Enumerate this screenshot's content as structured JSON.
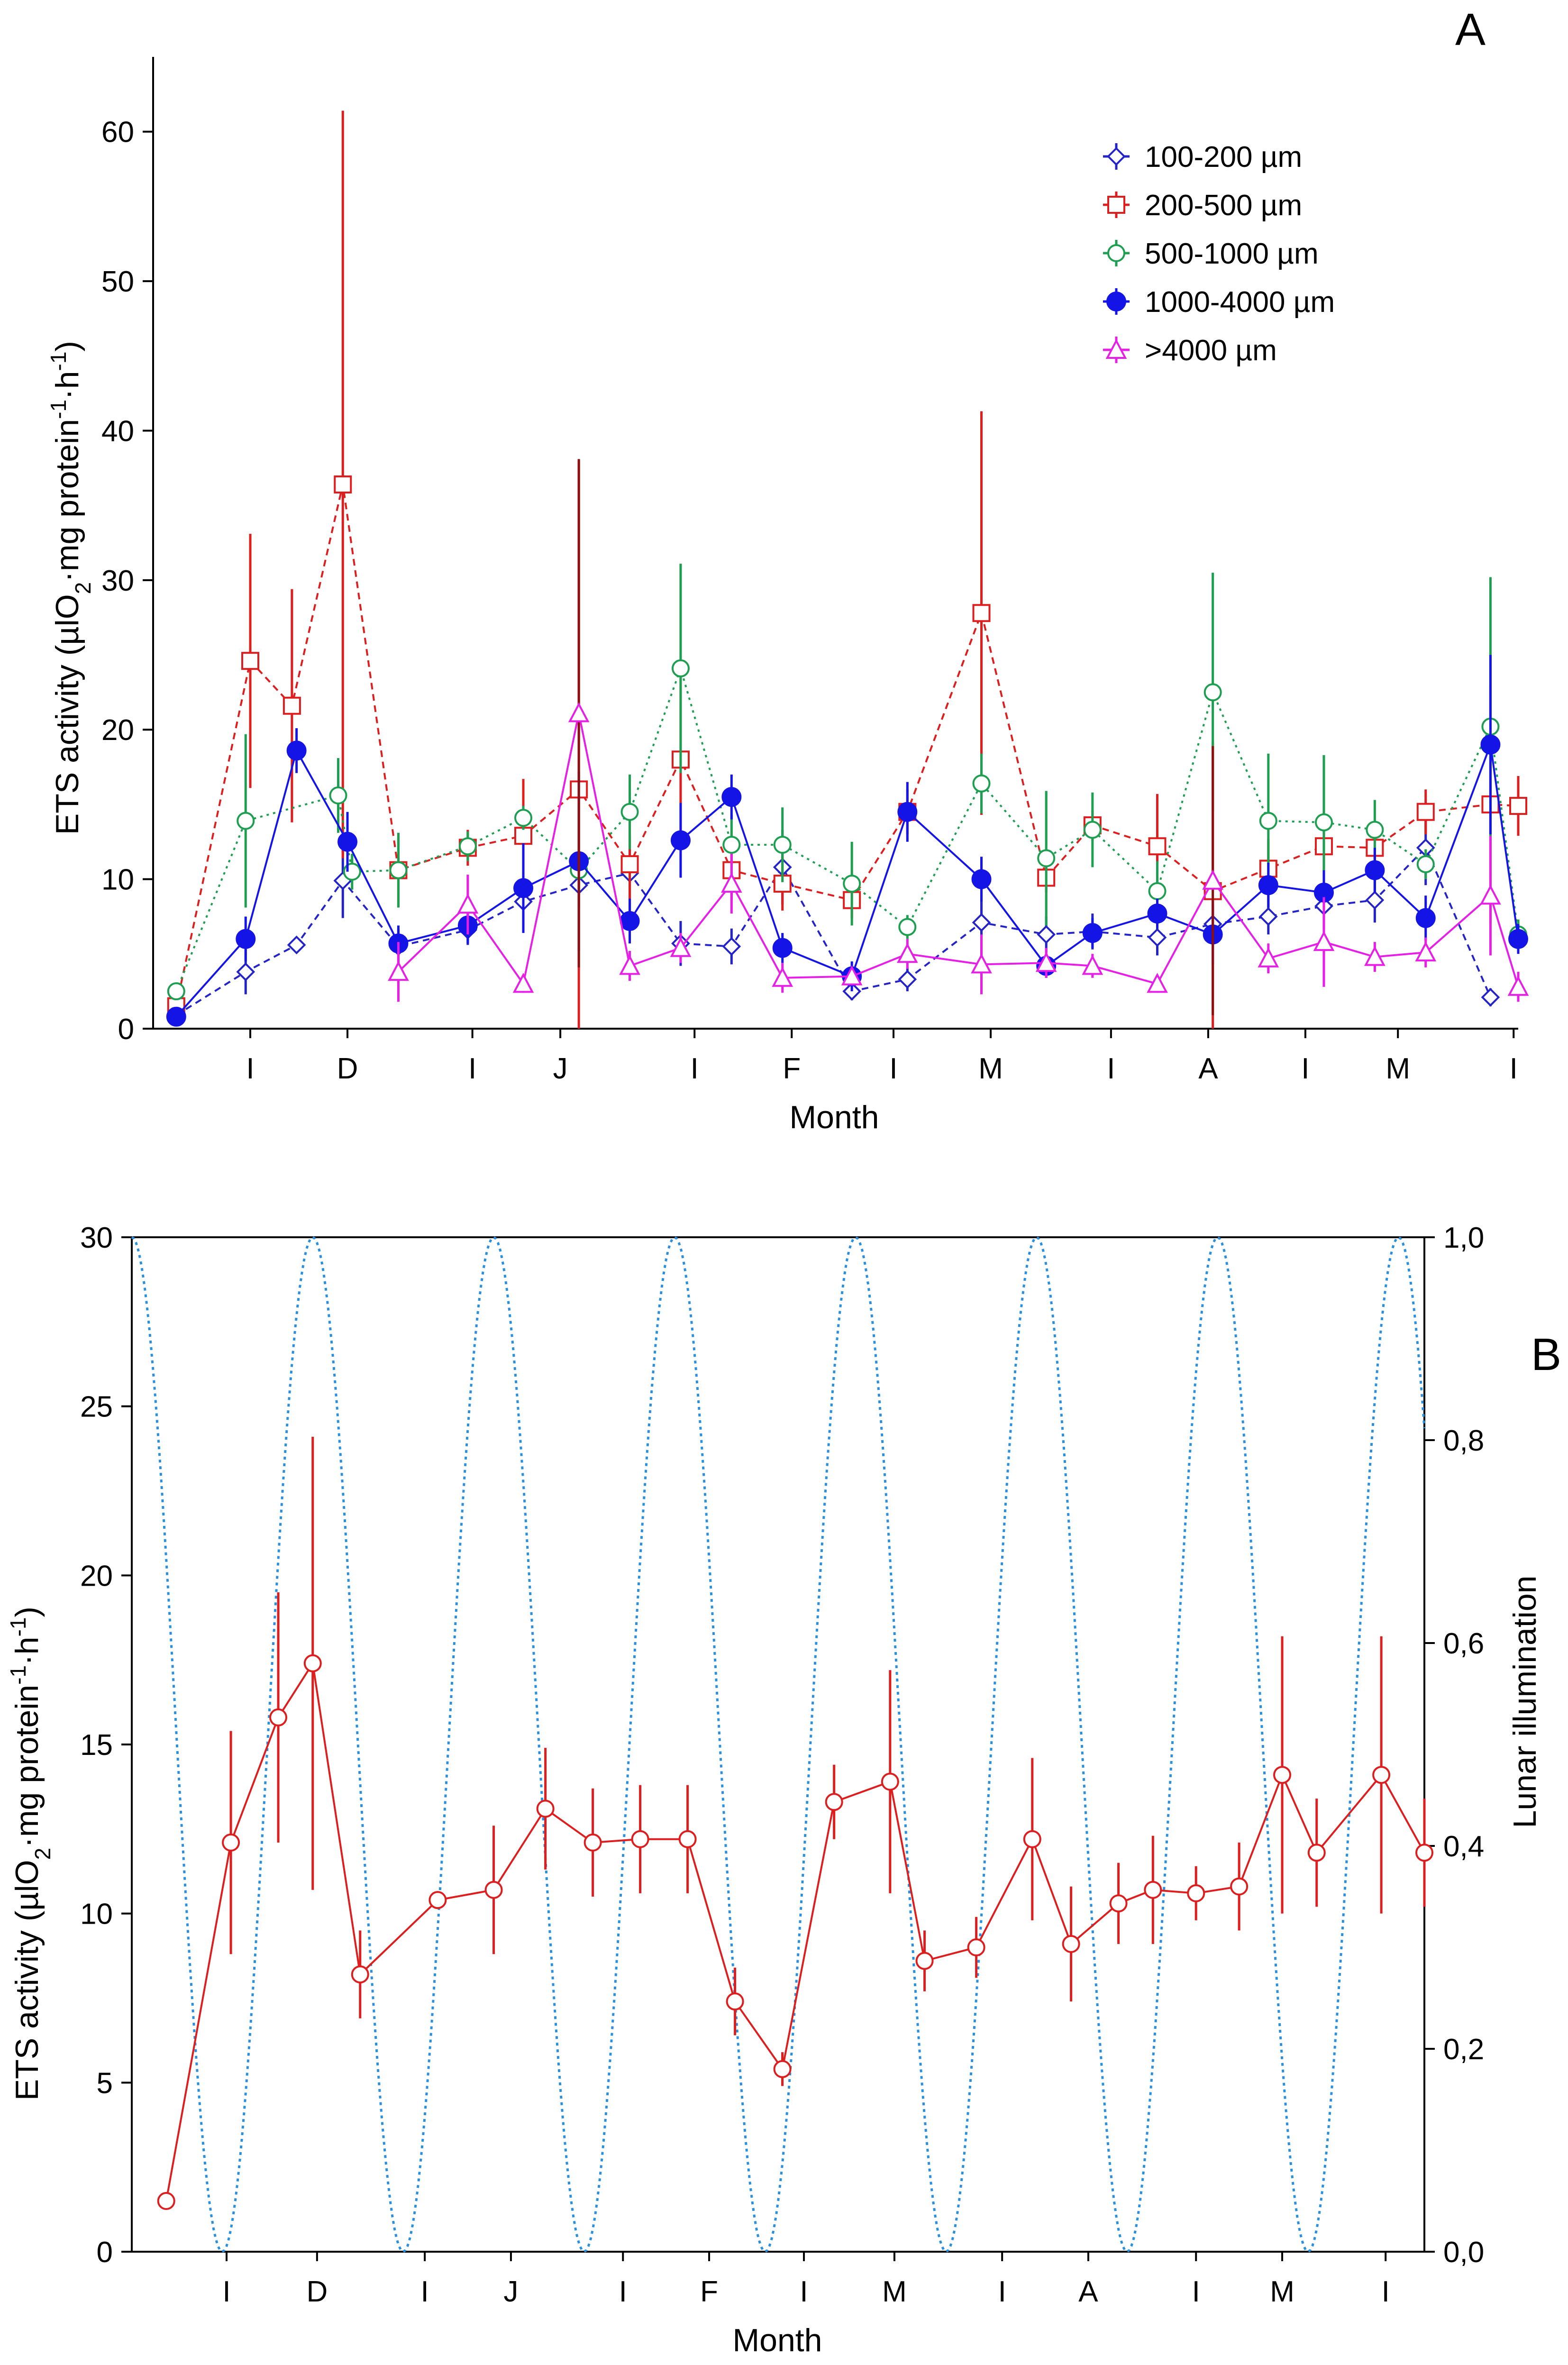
{
  "colors": {
    "blue_diamond": "#2323c8",
    "red_square": "#dc1e1e",
    "green_circle": "#1e9e50",
    "navy_dot": "#1414e6",
    "magenta_triangle": "#e61ee6",
    "dark_red_bar": "#8b1010",
    "lunar_line": "#2a8fdc",
    "panelB_red": "#dc1e1e"
  },
  "chart_data": [
    {
      "panel_label": "A",
      "type": "line",
      "xlabel": "Month",
      "ylabel_parts": [
        "ETS activity (",
        "µ",
        "lO",
        "2",
        "·mg protein",
        "-1",
        "·h",
        "-1",
        ")"
      ],
      "xlim": [
        0.5,
        30
      ],
      "ylim": [
        0,
        65
      ],
      "yticks": [
        0,
        10,
        20,
        30,
        40,
        50,
        60
      ],
      "month_ticks": [
        {
          "x": 2.6,
          "label": "I"
        },
        {
          "x": 4.7,
          "label": "D"
        },
        {
          "x": 7.4,
          "label": "I"
        },
        {
          "x": 9.3,
          "label": "J"
        },
        {
          "x": 12.2,
          "label": "I"
        },
        {
          "x": 14.3,
          "label": "F"
        },
        {
          "x": 16.5,
          "label": "I"
        },
        {
          "x": 18.6,
          "label": "M"
        },
        {
          "x": 21.2,
          "label": "I"
        },
        {
          "x": 23.3,
          "label": "A"
        },
        {
          "x": 25.4,
          "label": "I"
        },
        {
          "x": 27.4,
          "label": "M"
        },
        {
          "x": 29.9,
          "label": "I"
        }
      ],
      "series": [
        {
          "name": "100-200 µm",
          "marker": "diamond",
          "dash": "dashed",
          "color": "#2323c8",
          "x": [
            1,
            2.5,
            3.6,
            4.6,
            5.8,
            7.3,
            8.5,
            9.7,
            10.8,
            11.9,
            13.0,
            14.1,
            15.6,
            16.8,
            18.4,
            19.8,
            20.8,
            22.2,
            23.4,
            24.6,
            25.8,
            26.9,
            28.0,
            29.4
          ],
          "y": [
            0.9,
            3.8,
            5.6,
            9.9,
            5.5,
            6.6,
            8.5,
            9.6,
            10.4,
            5.7,
            5.5,
            10.8,
            2.5,
            3.3,
            7.1,
            6.3,
            6.5,
            6.1,
            7.0,
            7.5,
            8.2,
            8.6,
            12.1,
            2.1
          ],
          "err": [
            0.2,
            1.5,
            0.5,
            2.5,
            1.2,
            1.0,
            1.5,
            1.5,
            2.5,
            1.5,
            1.2,
            2.5,
            0.6,
            0.8,
            2.5,
            1.2,
            1.2,
            1.2,
            1.5,
            1.2,
            1.5,
            1.5,
            2.5,
            0.6
          ]
        },
        {
          "name": "200-500 µm",
          "marker": "square",
          "dash": "dashed",
          "color": "#dc1e1e",
          "x": [
            1,
            2.6,
            3.5,
            4.6,
            5.8,
            7.3,
            8.5,
            9.7,
            10.8,
            11.9,
            13.0,
            14.1,
            15.6,
            16.8,
            18.4,
            19.8,
            20.8,
            22.2,
            23.4,
            24.6,
            25.8,
            26.9,
            28.0,
            29.4,
            30.0
          ],
          "y": [
            1.5,
            24.6,
            21.6,
            36.4,
            10.6,
            12.1,
            12.9,
            16.0,
            11.0,
            18.0,
            10.6,
            9.7,
            8.6,
            14.5,
            27.8,
            10.1,
            13.6,
            12.2,
            9.2,
            10.7,
            12.2,
            12.1,
            14.5,
            15.0,
            14.9
          ],
          "err": [
            0.3,
            8.5,
            7.8,
            25.0,
            2.5,
            1.2,
            3.8,
            22.0,
            4.0,
            6.0,
            2.0,
            1.8,
            1.2,
            1.5,
            13.5,
            1.0,
            1.0,
            3.5,
            10.0,
            2.0,
            2.0,
            1.5,
            1.5,
            8.0,
            2.0
          ]
        },
        {
          "name": "500-1000 µm",
          "marker": "circle-open",
          "dash": "dotted",
          "color": "#1e9e50",
          "x": [
            1,
            2.5,
            4.5,
            4.8,
            5.8,
            7.3,
            8.5,
            9.7,
            10.8,
            11.9,
            13.0,
            14.1,
            15.6,
            16.8,
            18.4,
            19.8,
            20.8,
            22.2,
            23.4,
            24.6,
            25.8,
            26.9,
            28.0,
            29.4,
            30.0
          ],
          "y": [
            2.5,
            13.9,
            15.6,
            10.5,
            10.6,
            12.2,
            14.1,
            10.6,
            14.5,
            24.1,
            12.3,
            12.3,
            9.7,
            6.8,
            16.4,
            11.4,
            13.3,
            9.2,
            22.5,
            13.9,
            13.8,
            13.3,
            11.0,
            20.2,
            6.3
          ],
          "err": [
            0.5,
            5.8,
            2.5,
            1.2,
            2.5,
            1.0,
            0.8,
            1.2,
            2.5,
            7.0,
            2.0,
            2.5,
            2.8,
            0.8,
            2.0,
            4.5,
            2.5,
            2.0,
            8.0,
            4.5,
            4.5,
            2.0,
            1.0,
            10.0,
            1.0
          ]
        },
        {
          "name": "1000-4000 µm",
          "marker": "circle-filled",
          "dash": "solid",
          "color": "#1414e6",
          "x": [
            1,
            2.5,
            3.6,
            4.7,
            5.8,
            7.3,
            8.5,
            9.7,
            10.8,
            11.9,
            13.0,
            14.1,
            15.6,
            16.8,
            18.4,
            19.8,
            20.8,
            22.2,
            23.4,
            24.6,
            25.8,
            26.9,
            28.0,
            29.4,
            30.0
          ],
          "y": [
            0.8,
            6.0,
            18.6,
            12.5,
            5.7,
            6.9,
            9.4,
            11.2,
            7.2,
            12.6,
            15.5,
            5.4,
            3.5,
            14.5,
            10.0,
            4.2,
            6.4,
            7.7,
            6.3,
            9.6,
            9.1,
            10.6,
            7.4,
            19.0,
            6.0
          ],
          "err": [
            0.2,
            1.5,
            1.5,
            2.0,
            1.2,
            1.2,
            3.0,
            6.0,
            1.5,
            2.5,
            1.5,
            1.0,
            1.0,
            2.0,
            1.5,
            0.8,
            1.0,
            1.0,
            2.0,
            1.5,
            1.5,
            1.5,
            1.5,
            6.0,
            1.0
          ]
        },
        {
          "name": ">4000 µm",
          "marker": "triangle",
          "dash": "solid",
          "color": "#e61ee6",
          "x": [
            5.8,
            7.3,
            8.5,
            9.7,
            10.8,
            11.9,
            13.0,
            14.1,
            15.6,
            16.8,
            18.4,
            19.8,
            20.8,
            22.2,
            23.4,
            24.6,
            25.8,
            26.9,
            28.0,
            29.4,
            30.0
          ],
          "y": [
            3.8,
            8.3,
            3.0,
            21.1,
            4.2,
            5.4,
            9.7,
            3.4,
            3.5,
            5.0,
            4.3,
            4.4,
            4.2,
            3.0,
            9.9,
            4.7,
            5.8,
            4.8,
            5.1,
            8.9,
            2.8
          ],
          "err": [
            2.0,
            2.0,
            0.6,
            17.0,
            1.0,
            1.0,
            2.0,
            1.0,
            0.5,
            1.0,
            2.0,
            1.0,
            0.8,
            0.6,
            9.0,
            1.0,
            3.0,
            1.0,
            1.0,
            4.0,
            1.0
          ]
        }
      ]
    },
    {
      "panel_label": "B",
      "type": "line",
      "xlabel": "Month",
      "ylabel_parts": [
        "ETS activity (",
        "µ",
        "lO",
        "2",
        "·mg protein",
        "-1",
        "·h",
        "-1",
        ")"
      ],
      "y2label": "Lunar illumination",
      "xlim": [
        0,
        30
      ],
      "ylim": [
        0,
        30
      ],
      "y2lim": [
        0,
        1
      ],
      "yticks": [
        0,
        5,
        10,
        15,
        20,
        25,
        30
      ],
      "y2ticks": [
        "0,0",
        "0,2",
        "0,4",
        "0,6",
        "0,8",
        "1,0"
      ],
      "month_ticks": [
        {
          "x": 2.2,
          "label": "I"
        },
        {
          "x": 4.3,
          "label": "D"
        },
        {
          "x": 6.8,
          "label": "I"
        },
        {
          "x": 8.8,
          "label": "J"
        },
        {
          "x": 11.4,
          "label": "I"
        },
        {
          "x": 13.4,
          "label": "F"
        },
        {
          "x": 15.6,
          "label": "I"
        },
        {
          "x": 17.7,
          "label": "M"
        },
        {
          "x": 20.2,
          "label": "I"
        },
        {
          "x": 22.2,
          "label": "A"
        },
        {
          "x": 24.7,
          "label": "I"
        },
        {
          "x": 26.7,
          "label": "M"
        },
        {
          "x": 29.1,
          "label": "I"
        }
      ],
      "series": [
        {
          "name": "ETS activity",
          "marker": "circle-open",
          "dash": "solid",
          "color": "#dc1e1e",
          "x": [
            0.8,
            2.3,
            3.4,
            4.2,
            5.3,
            7.1,
            8.4,
            9.6,
            10.7,
            11.8,
            12.9,
            14.0,
            15.1,
            16.3,
            17.6,
            18.4,
            19.6,
            20.9,
            21.8,
            22.9,
            23.7,
            24.7,
            25.7,
            26.7,
            27.5,
            29.0,
            30.0
          ],
          "y": [
            1.5,
            12.1,
            15.8,
            17.4,
            8.2,
            10.4,
            10.7,
            13.1,
            12.1,
            12.2,
            12.2,
            7.4,
            5.4,
            13.3,
            13.9,
            8.6,
            9.0,
            12.2,
            9.1,
            10.3,
            10.7,
            10.6,
            10.8,
            14.1,
            11.8,
            14.1,
            11.8
          ],
          "err": [
            0,
            3.3,
            3.7,
            6.7,
            1.3,
            0,
            1.9,
            1.8,
            1.6,
            1.6,
            1.6,
            1.0,
            0.5,
            1.1,
            3.3,
            0.9,
            0.9,
            2.4,
            1.7,
            1.2,
            1.6,
            0.8,
            1.3,
            4.1,
            1.6,
            4.1,
            1.6
          ]
        },
        {
          "name": "Lunar illumination",
          "style": "dotted-curve",
          "color": "#2a8fdc",
          "x": [
            0,
            2.1,
            4.2,
            6.3,
            8.4,
            10.5,
            12.6,
            14.7,
            16.8,
            18.9,
            21.0,
            23.1,
            25.2,
            27.3,
            29.4
          ],
          "y": [
            1,
            0,
            1,
            0,
            1,
            0,
            1,
            0,
            1,
            0,
            1,
            0,
            1,
            0,
            1
          ]
        }
      ]
    }
  ]
}
